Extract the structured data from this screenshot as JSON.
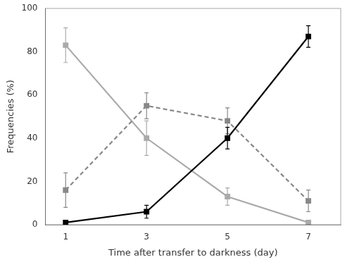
{
  "chart_data": {
    "type": "line",
    "xlabel": "Time after transfer to darkness (day)",
    "ylabel": "Frequencies (%)",
    "x": [
      1,
      3,
      5,
      7
    ],
    "xlim": [
      0.5,
      7.8
    ],
    "xticks": [
      1,
      3,
      5,
      7
    ],
    "ylim": [
      0,
      100
    ],
    "yticks": [
      0,
      20,
      40,
      60,
      80,
      100
    ],
    "grid": false,
    "series": [
      {
        "color": "#aaaaaa",
        "line_style": "solid",
        "marker": "square",
        "values": [
          83,
          40,
          13,
          1
        ],
        "errors": [
          8,
          8,
          4,
          1
        ]
      },
      {
        "color": "#888888",
        "line_style": "dashed",
        "marker": "square",
        "values": [
          16,
          55,
          48,
          11
        ],
        "errors": [
          8,
          6,
          6,
          5
        ]
      },
      {
        "color": "#000000",
        "line_style": "solid",
        "marker": "square",
        "values": [
          1,
          6,
          40,
          87
        ],
        "errors": [
          1,
          3,
          5,
          5
        ]
      }
    ]
  }
}
